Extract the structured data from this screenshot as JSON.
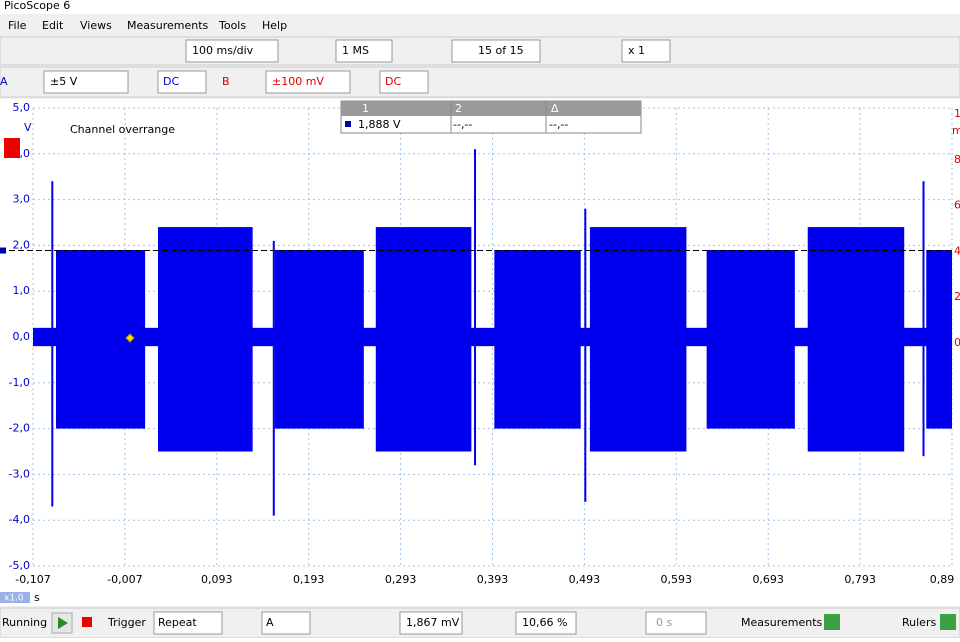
{
  "window_title": "PicoScope 6",
  "menu": [
    "File",
    "Edit",
    "Views",
    "Measurements",
    "Tools",
    "Help"
  ],
  "toolbar": {
    "timebase": "100 ms/div",
    "samples": "1 MS",
    "capture": "15 of 15",
    "zoom": "x 1"
  },
  "channels": [
    {
      "name": "A",
      "range": "±5 V",
      "coupling": "DC"
    },
    {
      "name": "B",
      "range": "±100 mV",
      "coupling": "DC"
    }
  ],
  "chart_data": {
    "type": "waveform",
    "annotation": "Channel overrange",
    "y_unit": "V",
    "x_unit": "s",
    "x_scale": "x1.0",
    "xlim": [
      -0.107,
      0.893
    ],
    "ylim": [
      -5,
      5
    ],
    "yticks": [
      {
        "value": 5,
        "label": "5,0"
      },
      {
        "value": 4,
        "label": "4,0"
      },
      {
        "value": 3,
        "label": "3,0"
      },
      {
        "value": 2,
        "label": "2,0"
      },
      {
        "value": 1,
        "label": "1,0"
      },
      {
        "value": 0,
        "label": "0,0"
      },
      {
        "value": -1,
        "label": "-1,0"
      },
      {
        "value": -2,
        "label": "-2,0"
      },
      {
        "value": -3,
        "label": "-3,0"
      },
      {
        "value": -4,
        "label": "-4,0"
      },
      {
        "value": -5,
        "label": "-5,0"
      }
    ],
    "xticks": [
      {
        "value": -0.107,
        "label": "-0,107"
      },
      {
        "value": -0.007,
        "label": "-0,007"
      },
      {
        "value": 0.093,
        "label": "0,093"
      },
      {
        "value": 0.193,
        "label": "0,193"
      },
      {
        "value": 0.293,
        "label": "0,293"
      },
      {
        "value": 0.393,
        "label": "0,393"
      },
      {
        "value": 0.493,
        "label": "0,493"
      },
      {
        "value": 0.593,
        "label": "0,593"
      },
      {
        "value": 0.693,
        "label": "0,693"
      },
      {
        "value": 0.793,
        "label": "0,793"
      },
      {
        "value": 0.893,
        "label": "0,89"
      }
    ],
    "y2_labels": [
      "1",
      "8",
      "6",
      "4",
      "2",
      "0"
    ],
    "y2_unit": "m",
    "grid": true,
    "ruler_level": 1.888,
    "series": [
      {
        "name": "A",
        "color": "#0000ee",
        "baseline": {
          "ymax": 0.2,
          "ymin": -0.2
        },
        "bursts": [
          {
            "x0": -0.082,
            "x1": 0.015,
            "ymax": 1.9,
            "ymin": -2.0
          },
          {
            "x0": 0.029,
            "x1": 0.132,
            "ymax": 2.4,
            "ymin": -2.5
          },
          {
            "x0": 0.156,
            "x1": 0.253,
            "ymax": 1.9,
            "ymin": -2.0
          },
          {
            "x0": 0.266,
            "x1": 0.37,
            "ymax": 2.4,
            "ymin": -2.5
          },
          {
            "x0": 0.395,
            "x1": 0.489,
            "ymax": 1.9,
            "ymin": -2.0
          },
          {
            "x0": 0.499,
            "x1": 0.604,
            "ymax": 2.4,
            "ymin": -2.5
          },
          {
            "x0": 0.626,
            "x1": 0.722,
            "ymax": 1.9,
            "ymin": -2.0
          },
          {
            "x0": 0.736,
            "x1": 0.841,
            "ymax": 2.4,
            "ymin": -2.5
          },
          {
            "x0": 0.865,
            "x1": 0.893,
            "ymax": 1.9,
            "ymin": -2.0
          }
        ],
        "spikes": [
          {
            "x": -0.086,
            "ymax": 3.4,
            "ymin": -3.7
          },
          {
            "x": 0.155,
            "ymax": 2.1,
            "ymin": -3.9
          },
          {
            "x": 0.374,
            "ymax": 4.1,
            "ymin": -2.8
          },
          {
            "x": 0.494,
            "ymax": 2.8,
            "ymin": -3.6
          },
          {
            "x": 0.862,
            "ymax": 3.4,
            "ymin": -2.6
          }
        ]
      }
    ]
  },
  "measurements_table": {
    "headers": [
      "1",
      "2",
      "Δ"
    ],
    "row": [
      "1,888 V",
      "--,--",
      "--,--"
    ]
  },
  "status_bar": {
    "state": "Running",
    "trigger_label": "Trigger",
    "trigger_mode": "Repeat",
    "trigger_channel": "A",
    "trigger_level": "1,867 mV",
    "pre_trigger": "10,66 %",
    "post_trigger_delay": "0 s",
    "measurements": "Measurements",
    "rulers": "Rulers"
  }
}
